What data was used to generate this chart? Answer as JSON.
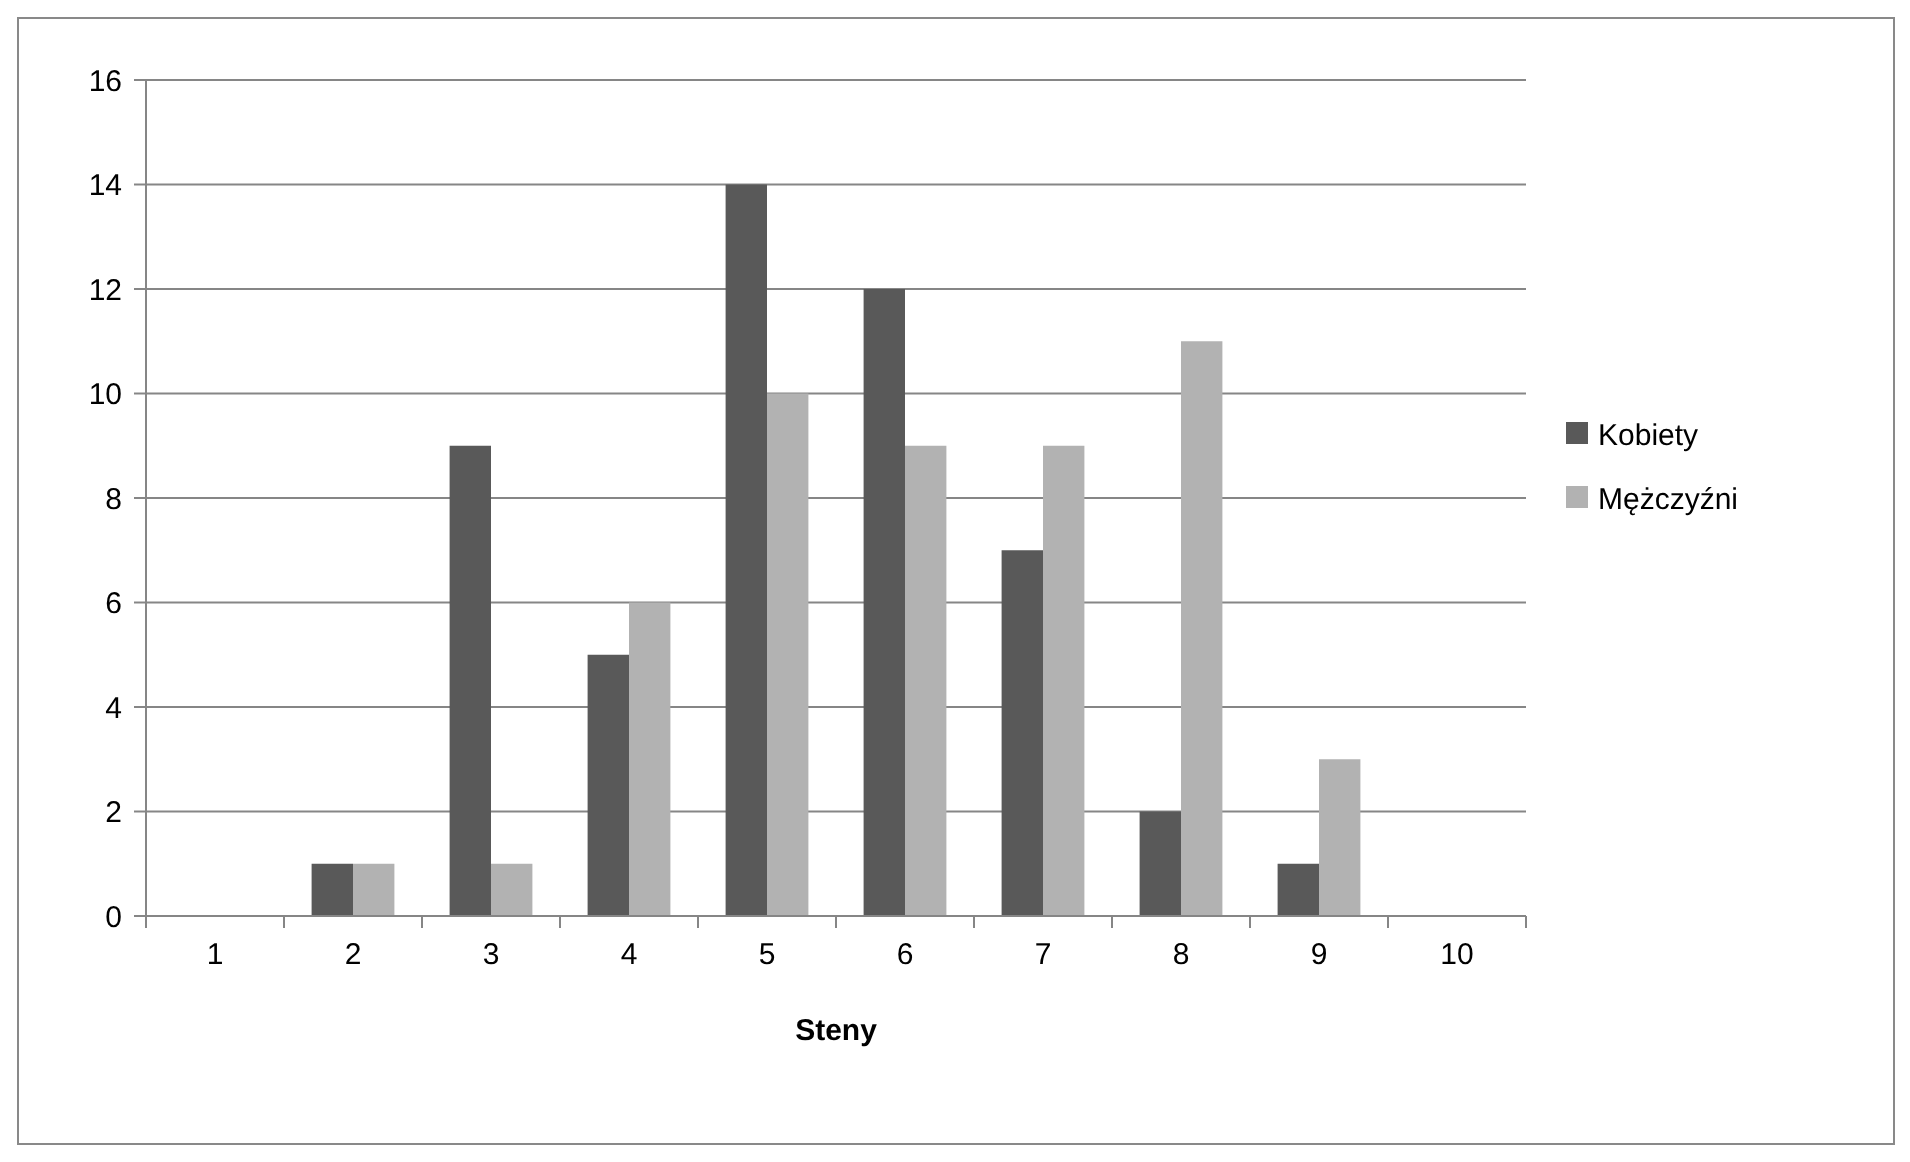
{
  "chart_data": {
    "type": "bar",
    "xlabel": "Steny",
    "categories": [
      "1",
      "2",
      "3",
      "4",
      "5",
      "6",
      "7",
      "8",
      "9",
      "10"
    ],
    "series": [
      {
        "name": "Kobiety",
        "color": "#595959",
        "values": [
          0,
          1,
          9,
          5,
          14,
          12,
          7,
          2,
          1,
          0
        ]
      },
      {
        "name": "Mężczyźni",
        "color": "#b2b2b2",
        "values": [
          0,
          1,
          1,
          6,
          10,
          9,
          9,
          11,
          3,
          0
        ]
      }
    ],
    "ylim": [
      0,
      16
    ],
    "yticks": [
      0,
      2,
      4,
      6,
      8,
      10,
      12,
      14,
      16
    ],
    "grid": "y",
    "legend": "right"
  }
}
